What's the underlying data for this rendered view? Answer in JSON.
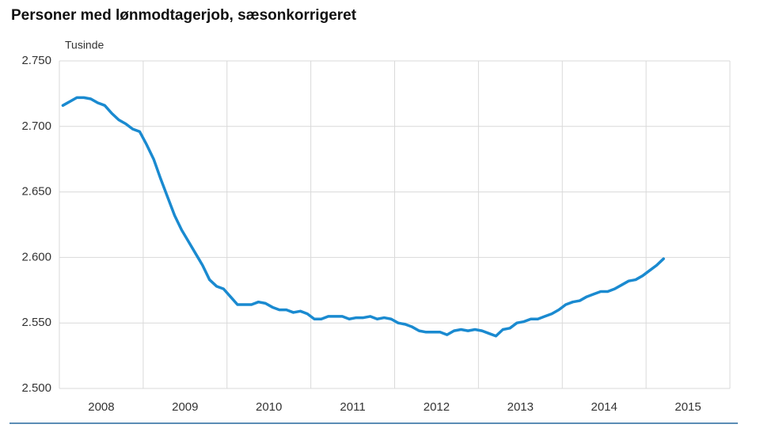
{
  "chart_data": {
    "type": "line",
    "title": "Personer med lønmodtagerjob, sæsonkorrigeret",
    "y_label": "Tusinde",
    "categories": [
      null,
      null,
      null,
      null,
      null,
      null,
      "2008",
      null,
      null,
      null,
      null,
      null,
      null,
      null,
      null,
      null,
      null,
      null,
      "2009",
      null,
      null,
      null,
      null,
      null,
      null,
      null,
      null,
      null,
      null,
      null,
      "2010",
      null,
      null,
      null,
      null,
      null,
      null,
      null,
      null,
      null,
      null,
      null,
      "2011",
      null,
      null,
      null,
      null,
      null,
      null,
      null,
      null,
      null,
      null,
      null,
      "2012",
      null,
      null,
      null,
      null,
      null,
      null,
      null,
      null,
      null,
      null,
      null,
      "2013",
      null,
      null,
      null,
      null,
      null,
      null,
      null,
      null,
      null,
      null,
      null,
      "2014",
      null,
      null,
      null,
      null,
      null,
      null,
      null,
      null,
      null,
      null,
      null,
      "2015",
      null,
      null,
      null,
      null,
      null
    ],
    "series": [
      {
        "color": "#1a8ad0",
        "values": [
          2716,
          2719,
          2722,
          2722,
          2721,
          2718,
          2716,
          2710,
          2705,
          2702,
          2698,
          2696,
          2686,
          2675,
          2660,
          2646,
          2632,
          2621,
          2612,
          2603,
          2594,
          2583,
          2578,
          2576,
          2570,
          2564,
          2564,
          2564,
          2566,
          2565,
          2562,
          2560,
          2560,
          2558,
          2559,
          2557,
          2553,
          2553,
          2555,
          2555,
          2555,
          2553,
          2554,
          2554,
          2555,
          2553,
          2554,
          2553,
          2550,
          2549,
          2547,
          2544,
          2543,
          2543,
          2543,
          2541,
          2544,
          2545,
          2544,
          2545,
          2544,
          2542,
          2540,
          2545,
          2546,
          2550,
          2551,
          2553,
          2553,
          2555,
          2557,
          2560,
          2564,
          2566,
          2567,
          2570,
          2572,
          2574,
          2574,
          2576,
          2579,
          2582,
          2583,
          2586,
          2590,
          2594,
          2599,
          null,
          null,
          null,
          null,
          null,
          null,
          null,
          null,
          null
        ]
      }
    ],
    "ylim": [
      2500,
      2750
    ],
    "yticks": [
      {
        "value": 2500,
        "label": "2.500"
      },
      {
        "value": 2550,
        "label": "2.550"
      },
      {
        "value": 2600,
        "label": "2.600"
      },
      {
        "value": 2650,
        "label": "2.650"
      },
      {
        "value": 2700,
        "label": "2.700"
      },
      {
        "value": 2750,
        "label": "2.750"
      }
    ],
    "grid": true
  }
}
